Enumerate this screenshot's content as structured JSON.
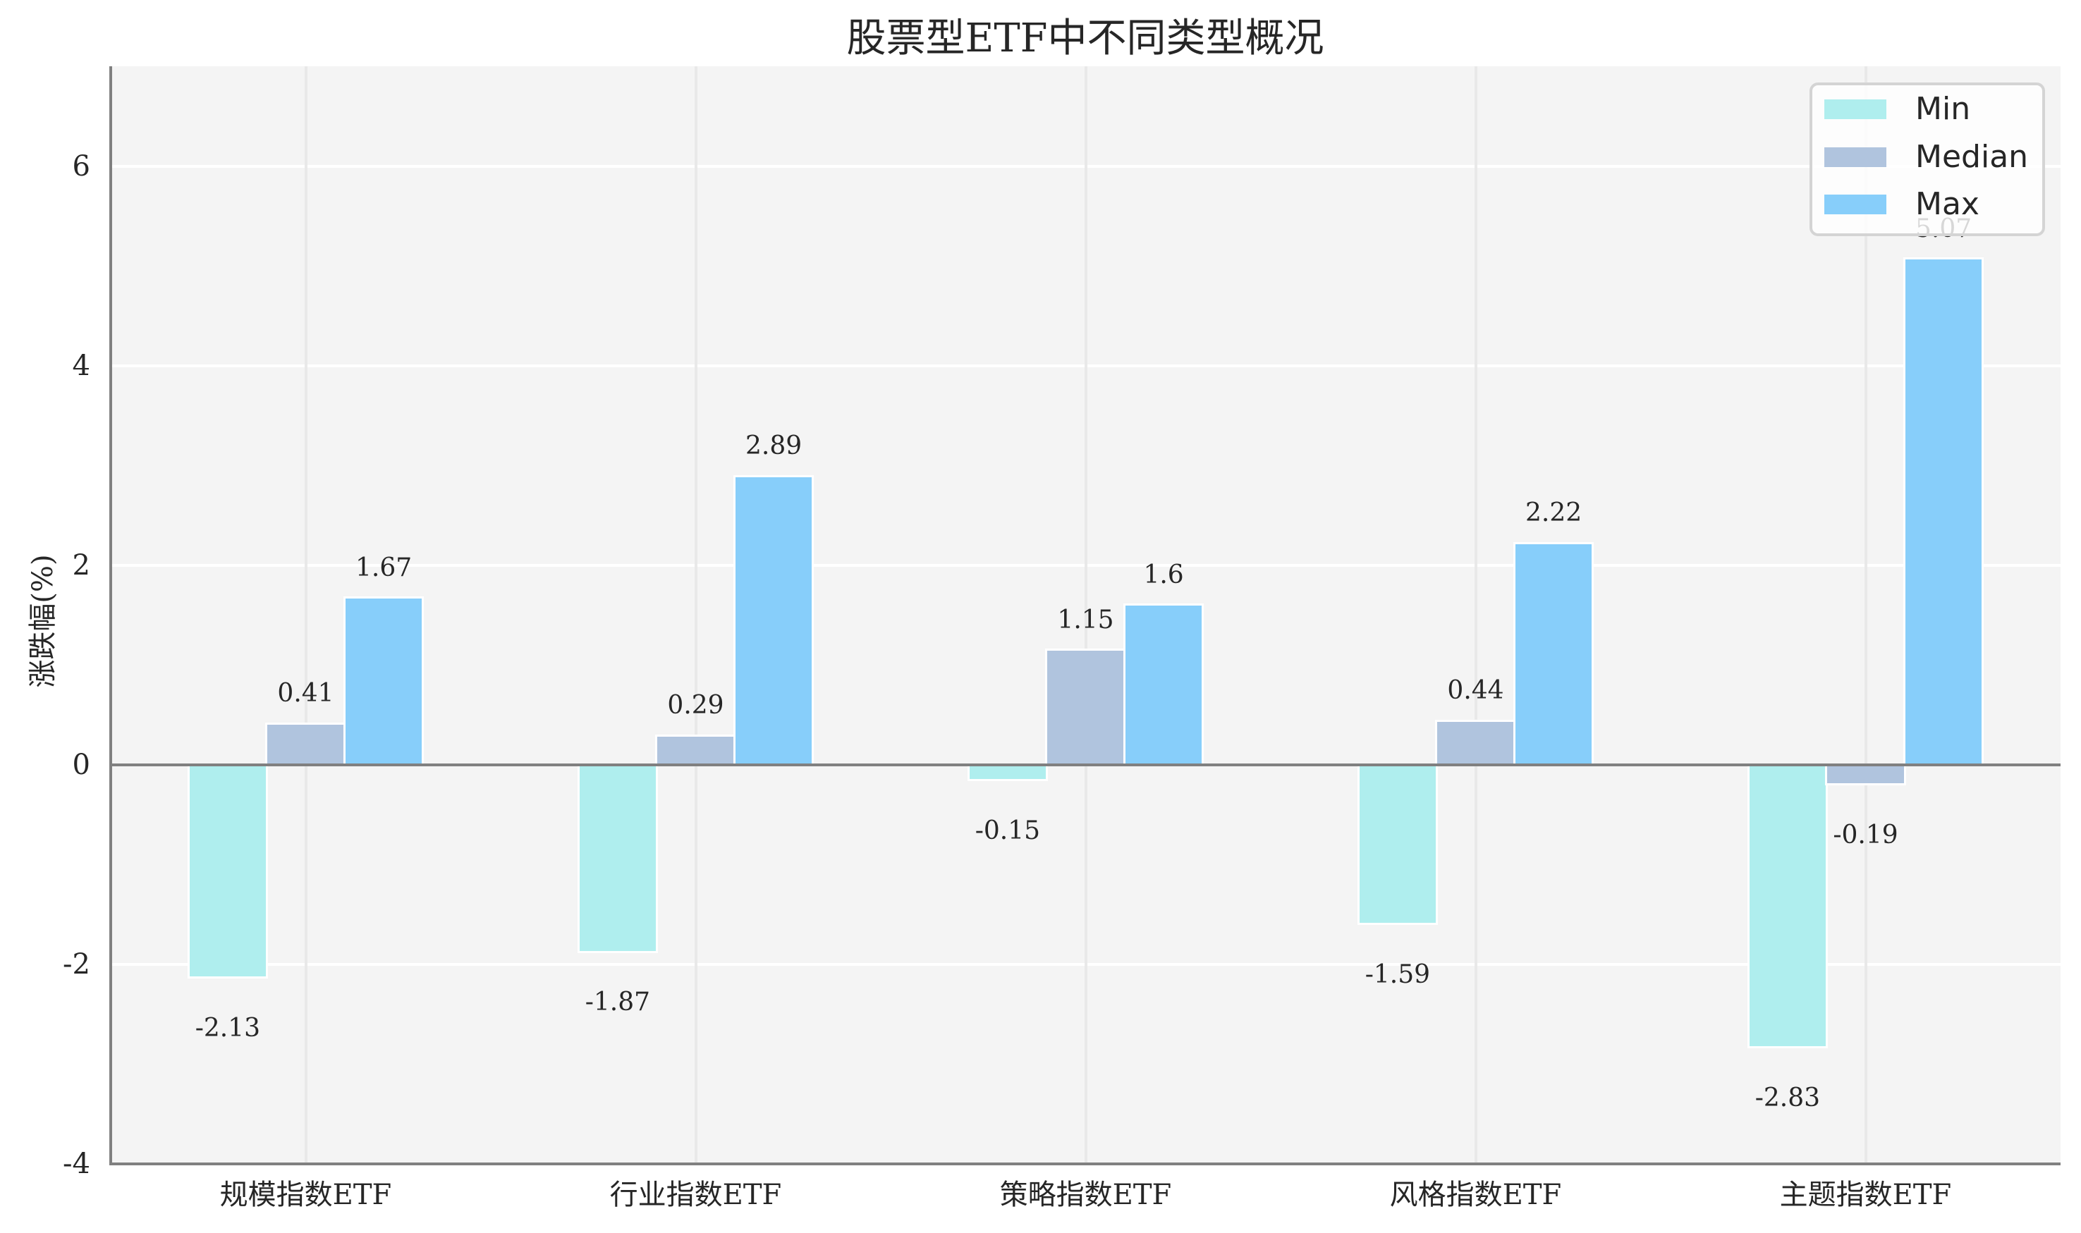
{
  "title": "股票型ETF中不同类型概况",
  "y_axis": {
    "label": "涨跌幅(%)",
    "tick_values": [
      6,
      4,
      2,
      0,
      -2,
      -4
    ],
    "tick_labels": [
      "6",
      "4",
      "2",
      "0",
      "-2",
      "-4"
    ]
  },
  "x_axis": {
    "tick_labels": [
      "规模指数ETF",
      "行业指数ETF",
      "策略指数ETF",
      "风格指数ETF",
      "主题指数ETF"
    ]
  },
  "legend": {
    "position": "upper right",
    "items": [
      {
        "label": "Min",
        "color": "#AFEEEE"
      },
      {
        "label": "Median",
        "color": "#B0C4DE"
      },
      {
        "label": "Max",
        "color": "#87CEFA"
      }
    ]
  },
  "style": {
    "plot_background": "#F4F4F4",
    "horizontal_grid_color": "#FFFFFF",
    "vertical_grid_color": "#E9E9E9",
    "spine_color": "#808080",
    "zero_line_color": "#808080",
    "bar_edge_color": "#FFFFFF",
    "text_color": "#262626"
  },
  "chart_data": {
    "type": "bar",
    "title": "股票型ETF中不同类型概况",
    "xlabel": "",
    "ylabel": "涨跌幅(%)",
    "categories": [
      "规模指数ETF",
      "行业指数ETF",
      "策略指数ETF",
      "风格指数ETF",
      "主题指数ETF"
    ],
    "series": [
      {
        "name": "Min",
        "color": "#AFEEEE",
        "values": [
          -2.13,
          -1.87,
          -0.15,
          -1.59,
          -2.83
        ]
      },
      {
        "name": "Median",
        "color": "#B0C4DE",
        "values": [
          0.41,
          0.29,
          1.15,
          0.44,
          -0.19
        ]
      },
      {
        "name": "Max",
        "color": "#87CEFA",
        "values": [
          1.67,
          2.89,
          1.6,
          2.22,
          5.07
        ]
      }
    ],
    "ylim": [
      -4,
      7
    ],
    "xlim": [
      -0.5,
      4.5
    ],
    "yticks": [
      6,
      4,
      2,
      0,
      -2,
      -4
    ],
    "bar_width": 0.2,
    "grid": {
      "horizontal": true,
      "vertical": true
    },
    "zero_line": true,
    "data_labels": true,
    "legend_position": "upper right"
  }
}
